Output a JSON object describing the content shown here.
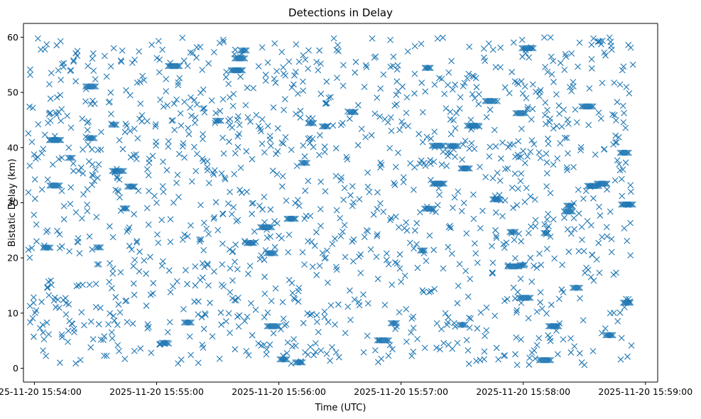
{
  "chart_data": {
    "type": "scatter",
    "title": "Detections in Delay",
    "xlabel": "Time (UTC)",
    "ylabel": "Bistatic Delay (km)",
    "x_unit": "minutes after 2025-11-20 15:54:00 UTC",
    "xlim": [
      -0.09,
      5.1
    ],
    "ylim": [
      -2.5,
      62.5
    ],
    "grid": false,
    "marker": "x",
    "series": [
      {
        "name": "detections",
        "color": "#1f77b4",
        "point_count": 1800,
        "x_range": [
          -0.05,
          4.9
        ],
        "y_range": [
          0.5,
          60.0
        ],
        "distribution": "approximately uniform",
        "points_sample": [
          [
            -0.04,
            47.4
          ],
          [
            0.1,
            58.7
          ],
          [
            0.3,
            54.0
          ],
          [
            0.5,
            36.0
          ],
          [
            0.74,
            1.7
          ],
          [
            1.0,
            30.0
          ],
          [
            1.2,
            44.0
          ],
          [
            1.65,
            12.3
          ],
          [
            2.0,
            24.0
          ],
          [
            2.45,
            59.8
          ],
          [
            2.7,
            51.0
          ],
          [
            3.1,
            3.0
          ],
          [
            3.55,
            13.0
          ],
          [
            3.95,
            0.6
          ],
          [
            4.5,
            0.6
          ],
          [
            4.86,
            58.6
          ]
        ]
      }
    ],
    "x_ticks": [
      {
        "value": 0,
        "label": "2025-11-20 15:54:00"
      },
      {
        "value": 1,
        "label": "2025-11-20 15:55:00"
      },
      {
        "value": 2,
        "label": "2025-11-20 15:56:00"
      },
      {
        "value": 3,
        "label": "2025-11-20 15:57:00"
      },
      {
        "value": 4,
        "label": "2025-11-20 15:58:00"
      },
      {
        "value": 5,
        "label": "2025-11-20 15:59:00"
      }
    ],
    "y_ticks": [
      {
        "value": 0,
        "label": "0"
      },
      {
        "value": 10,
        "label": "10"
      },
      {
        "value": 20,
        "label": "20"
      },
      {
        "value": 30,
        "label": "30"
      },
      {
        "value": 40,
        "label": "40"
      },
      {
        "value": 50,
        "label": "50"
      },
      {
        "value": 60,
        "label": "60"
      }
    ]
  }
}
